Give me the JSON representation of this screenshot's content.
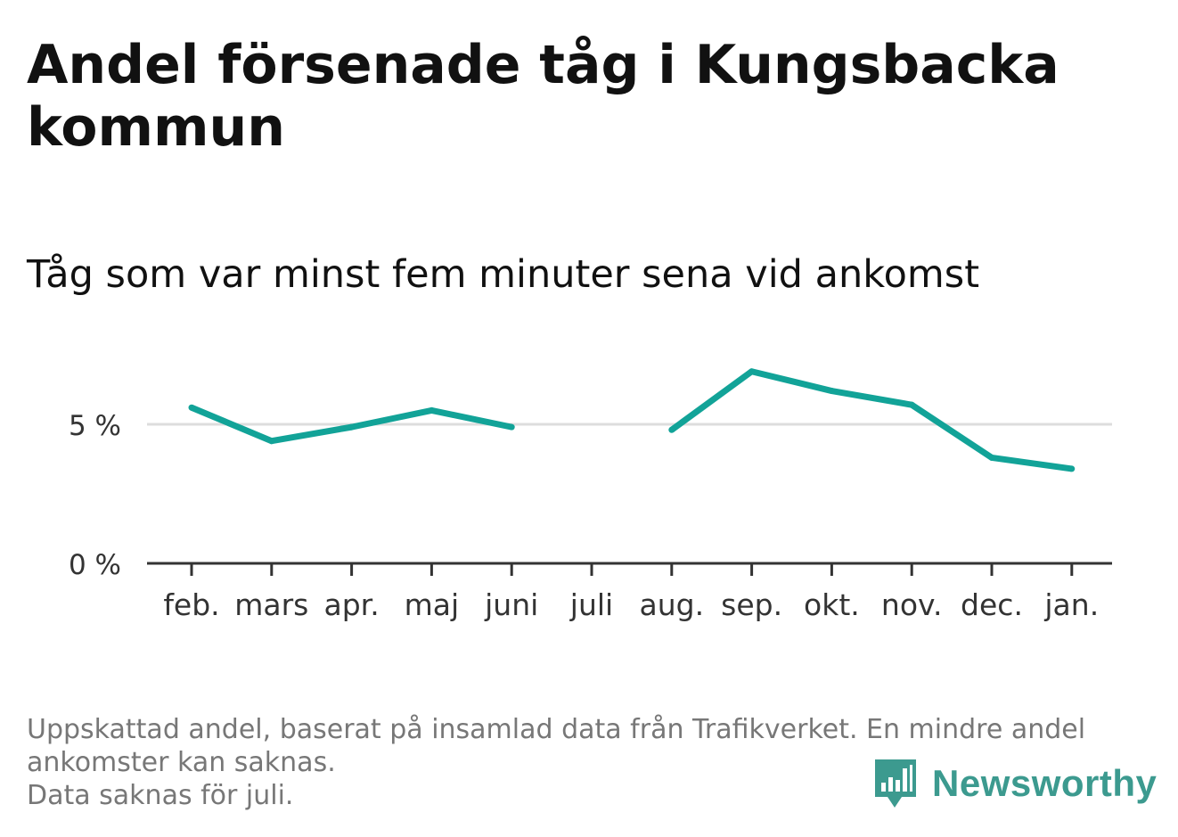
{
  "header": {
    "title": "Andel försenade tåg i Kungsbacka kommun",
    "subtitle": "Tåg som var minst fem minuter sena vid ankomst"
  },
  "footer": {
    "line1": "Uppskattad andel, baserat på insamlad data från Trafikverket. En mindre andel",
    "line2": "ankomster kan saknas.",
    "line3": "Data saknas för juli."
  },
  "brand": {
    "name": "Newsworthy",
    "color": "#3c9a8f"
  },
  "colors": {
    "line": "#12a398",
    "grid": "#dddddd",
    "axis": "#333333"
  },
  "chart_data": {
    "type": "line",
    "categories": [
      "feb.",
      "mars",
      "apr.",
      "maj",
      "juni",
      "juli",
      "aug.",
      "sep.",
      "okt.",
      "nov.",
      "dec.",
      "jan."
    ],
    "series": [
      {
        "values": [
          5.6,
          4.4,
          4.9,
          5.5,
          4.9,
          null,
          4.8,
          6.9,
          6.2,
          5.7,
          3.8,
          3.4
        ]
      }
    ],
    "yticks": [
      0,
      5
    ],
    "ytick_labels": [
      "0 %",
      "5 %"
    ],
    "ylim": [
      0,
      8
    ],
    "grid": true,
    "xlabel": "",
    "ylabel": ""
  }
}
